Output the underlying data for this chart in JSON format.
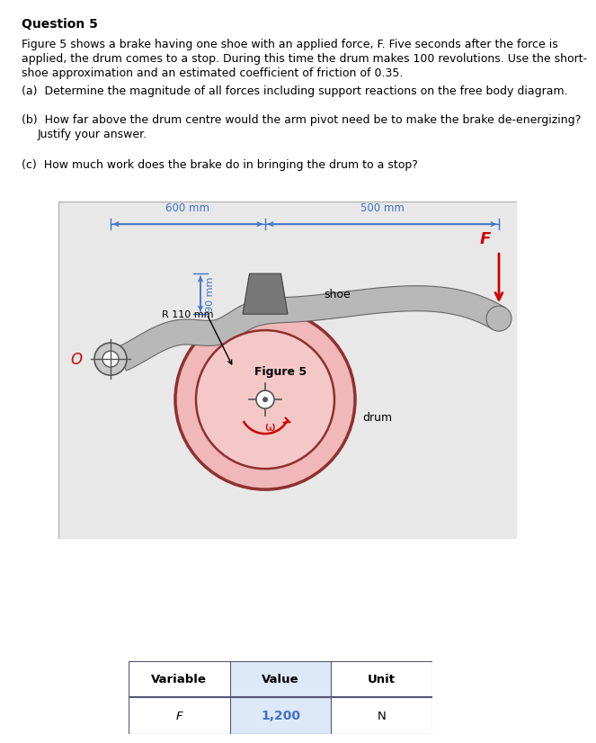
{
  "title": "Question 5",
  "para1": "Figure 5 shows a brake having one shoe with an applied force, F. Five seconds after the force is\napplied, the drum comes to a stop. During this time the drum makes 100 revolutions. Use the short-\nshoe approximation and an estimated coefficient of friction of 0.35.",
  "qa": "(a)  Determine the magnitude of all forces including support reactions on the free body diagram.",
  "qb_1": "(b)  How far above the drum centre would the arm pivot need be to make the brake de-energizing?",
  "qb_2": "       Justify your answer.",
  "qc": "(c)  How much work does the brake do in bringing the drum to a stop?",
  "fig_caption": "Figure 5",
  "dim_600": "600 mm",
  "dim_500": "500 mm",
  "dim_90": "90 mm",
  "dim_r110": "R 110 mm",
  "label_shoe": "shoe",
  "label_drum": "drum",
  "label_F": "F",
  "label_O": "O",
  "label_omega": "ω",
  "bg_color": "#e8e8e8",
  "dim_color": "#4472c4",
  "force_color": "#cc0000",
  "table_value_color": "#4472c4",
  "variable_col": "Variable",
  "value_col": "Value",
  "unit_col": "Unit",
  "var_name": "F",
  "var_value": "1,200",
  "var_unit": "N"
}
